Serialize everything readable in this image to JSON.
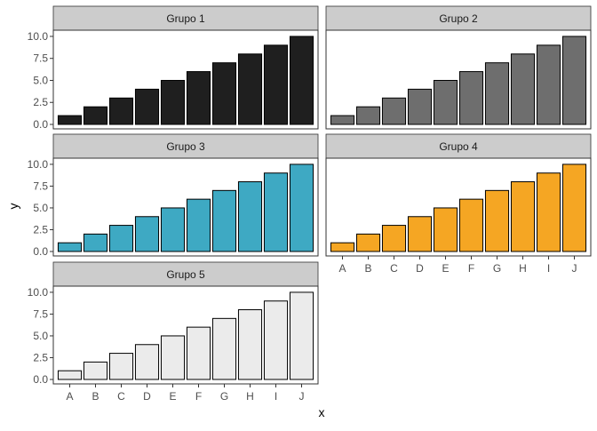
{
  "chart_data": {
    "type": "bar",
    "xlabel": "x",
    "ylabel": "y",
    "ylim": [
      0,
      10.5
    ],
    "yticks": [
      "0.0",
      "2.5",
      "5.0",
      "7.5",
      "10.0"
    ],
    "categories": [
      "A",
      "B",
      "C",
      "D",
      "E",
      "F",
      "G",
      "H",
      "I",
      "J"
    ],
    "facet_layout": "3 rows x 2 columns, shared y axis",
    "panels": [
      {
        "title": "Grupo 1",
        "fill": "#1f1f1f",
        "values": [
          1,
          2,
          3,
          4,
          5,
          6,
          7,
          8,
          9,
          10
        ]
      },
      {
        "title": "Grupo 2",
        "fill": "#6e6e6e",
        "values": [
          1,
          2,
          3,
          4,
          5,
          6,
          7,
          8,
          9,
          10
        ]
      },
      {
        "title": "Grupo 3",
        "fill": "#3ea9c3",
        "values": [
          1,
          2,
          3,
          4,
          5,
          6,
          7,
          8,
          9,
          10
        ]
      },
      {
        "title": "Grupo 4",
        "fill": "#f5a623",
        "values": [
          1,
          2,
          3,
          4,
          5,
          6,
          7,
          8,
          9,
          10
        ]
      },
      {
        "title": "Grupo 5",
        "fill": "#ebebeb",
        "values": [
          1,
          2,
          3,
          4,
          5,
          6,
          7,
          8,
          9,
          10
        ]
      }
    ]
  }
}
